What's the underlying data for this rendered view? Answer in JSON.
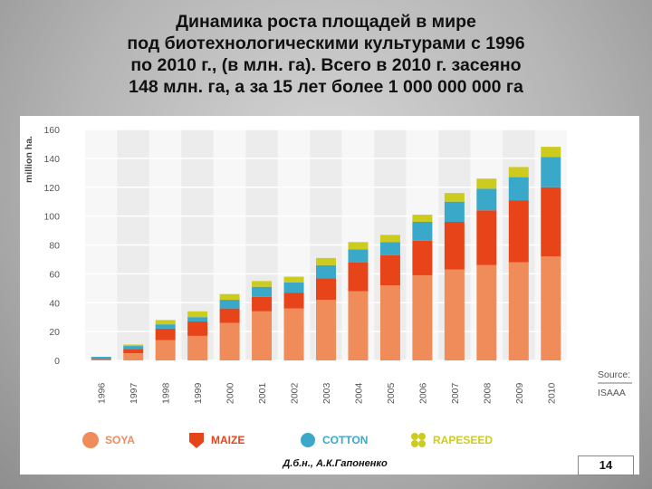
{
  "title": {
    "lines": [
      "Динамика роста площадей в мире",
      "под биотехнологическими культурами с 1996",
      "по 2010 г., (в млн. га). Всего в 2010 г. засеяно",
      "148 млн. га, а за 15 лет более 1 000 000 000 га"
    ]
  },
  "footer": {
    "author": "Д.б.н., А.К.Гапоненко",
    "page_number": "14"
  },
  "chart_data": {
    "type": "bar",
    "stacked": true,
    "ylabel": "million ha.",
    "ylim": [
      0,
      160
    ],
    "yticks": [
      0,
      20,
      40,
      60,
      80,
      100,
      120,
      140,
      160
    ],
    "grid": true,
    "source_label": "Source:",
    "source": "ISAAA",
    "categories": [
      "1996",
      "1997",
      "1998",
      "1999",
      "2000",
      "2001",
      "2002",
      "2003",
      "2004",
      "2005",
      "2006",
      "2007",
      "2008",
      "2009",
      "2010"
    ],
    "series": [
      {
        "name": "SOYA",
        "color": "#ef8c5a",
        "values": [
          0.5,
          5,
          14,
          17,
          26,
          34,
          36,
          42,
          48,
          52,
          59,
          63,
          66,
          68,
          72
        ]
      },
      {
        "name": "MAIZE",
        "color": "#e8441a",
        "values": [
          0.5,
          3,
          8,
          10,
          10,
          10,
          11,
          15,
          20,
          21,
          24,
          33,
          38,
          43,
          48
        ]
      },
      {
        "name": "COTTON",
        "color": "#3aa8c8",
        "values": [
          1.5,
          2,
          3,
          3,
          6,
          7,
          7,
          9,
          9,
          9,
          13,
          14,
          15,
          16,
          21
        ]
      },
      {
        "name": "RAPESEED",
        "color": "#cdcc1e",
        "values": [
          0,
          1,
          3,
          4,
          4,
          4,
          4,
          5,
          5,
          5,
          5,
          6,
          7,
          7,
          7
        ]
      }
    ],
    "legend_position": "bottom"
  }
}
